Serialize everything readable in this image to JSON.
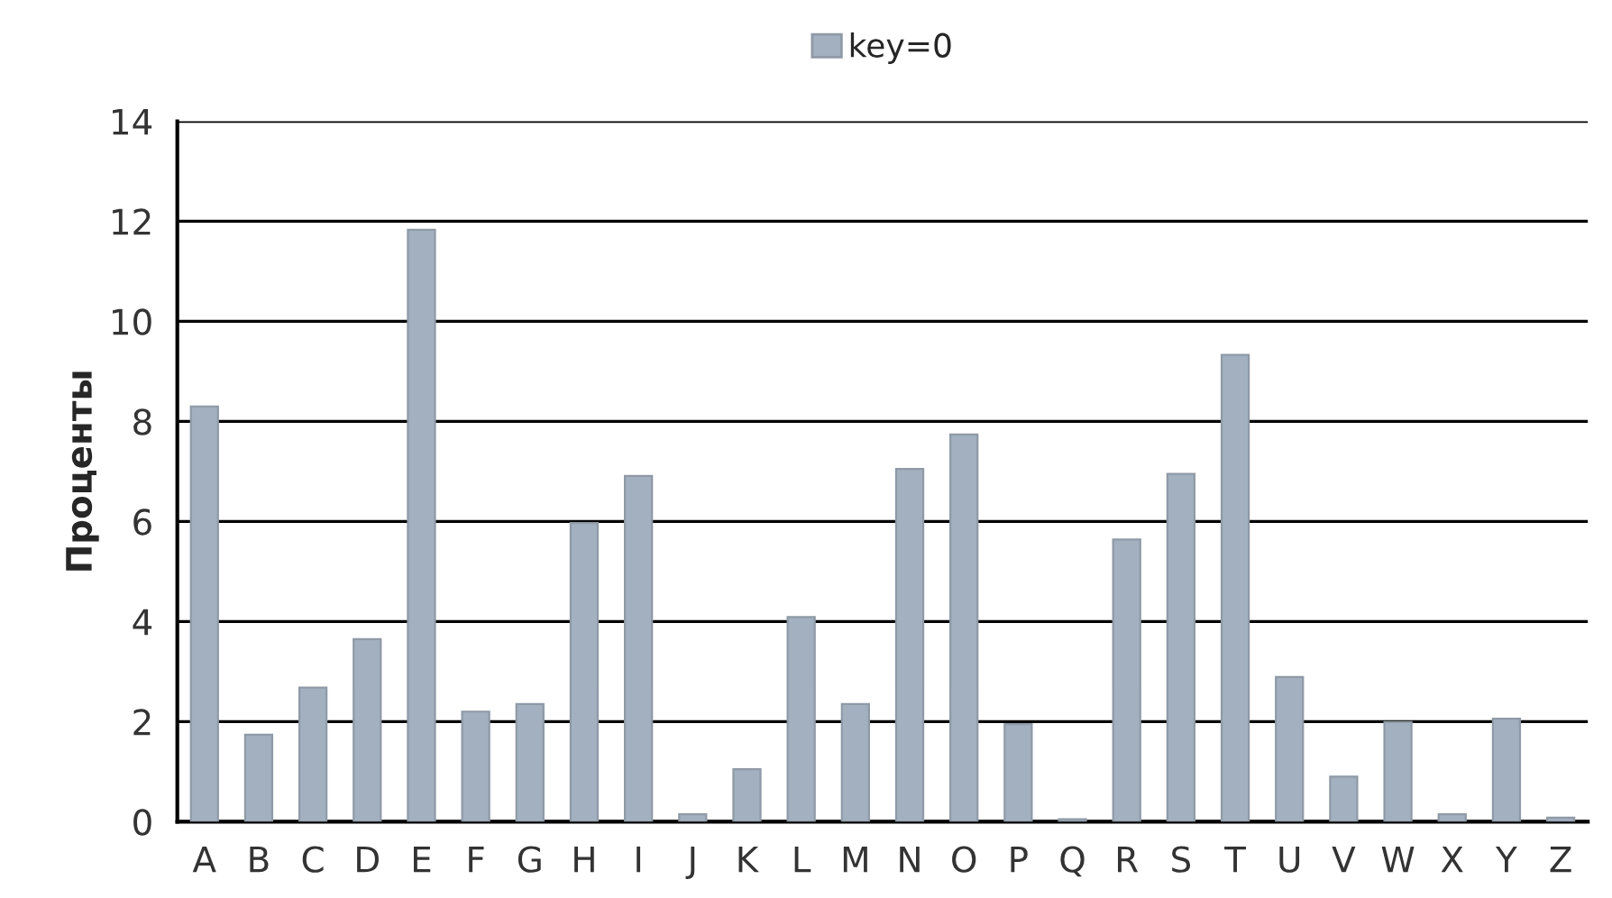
{
  "chart_data": {
    "type": "bar",
    "ylabel": "Проценты",
    "categories": [
      "A",
      "B",
      "C",
      "D",
      "E",
      "F",
      "G",
      "H",
      "I",
      "J",
      "K",
      "L",
      "M",
      "N",
      "O",
      "P",
      "Q",
      "R",
      "S",
      "T",
      "U",
      "V",
      "W",
      "X",
      "Y",
      "Z"
    ],
    "series": [
      {
        "name": "key=0",
        "color": "#a2b0c0",
        "values": [
          8.3,
          1.74,
          2.68,
          3.65,
          11.83,
          2.2,
          2.35,
          5.97,
          6.91,
          0.15,
          1.05,
          4.09,
          2.35,
          7.05,
          7.74,
          1.95,
          0.05,
          5.64,
          6.95,
          9.33,
          2.89,
          0.9,
          1.99,
          0.15,
          2.06,
          0.08
        ]
      }
    ],
    "ylim": [
      0,
      14
    ],
    "yticks": [
      0,
      2,
      4,
      6,
      8,
      10,
      12,
      14
    ],
    "grid": "y",
    "legend": "top"
  }
}
